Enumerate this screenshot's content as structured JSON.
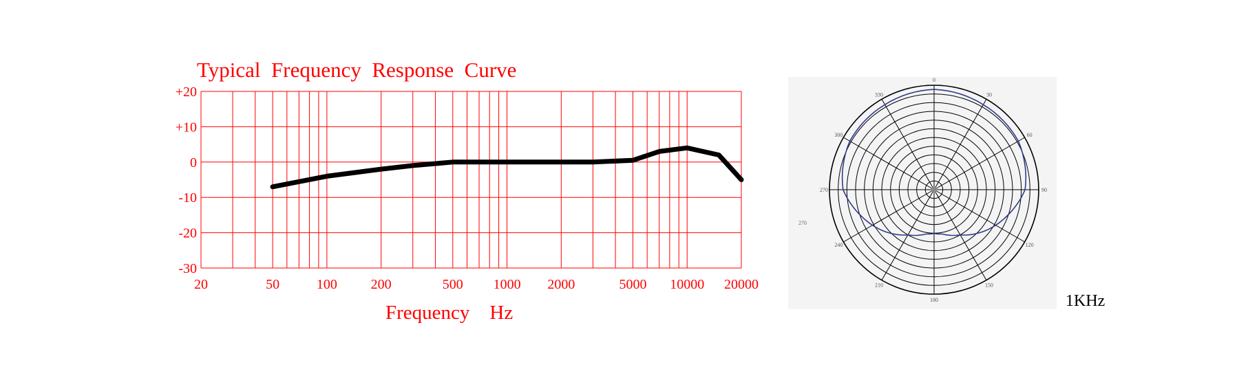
{
  "chart_data": [
    {
      "type": "line",
      "title": "Typical  Frequency  Response  Curve",
      "xlabel": "Frequency    Hz",
      "ylabel": "",
      "xscale": "log",
      "xlim": [
        20,
        20000
      ],
      "ylim": [
        -30,
        20
      ],
      "grid": true,
      "colors": {
        "axis": "#ff0000",
        "curve": "#000000"
      },
      "x_tick_labels": [
        {
          "value": 20,
          "label": "20"
        },
        {
          "value": 50,
          "label": "50"
        },
        {
          "value": 100,
          "label": "100"
        },
        {
          "value": 200,
          "label": "200"
        },
        {
          "value": 500,
          "label": "500"
        },
        {
          "value": 1000,
          "label": "1000"
        },
        {
          "value": 2000,
          "label": "2000"
        },
        {
          "value": 5000,
          "label": "5000"
        },
        {
          "value": 10000,
          "label": "10000"
        },
        {
          "value": 20000,
          "label": "20000"
        }
      ],
      "y_tick_labels": [
        {
          "value": 20,
          "label": "+20"
        },
        {
          "value": 10,
          "label": "+10"
        },
        {
          "value": 0,
          "label": "0"
        },
        {
          "value": -10,
          "label": "-10"
        },
        {
          "value": -20,
          "label": "-20"
        },
        {
          "value": -30,
          "label": "-30"
        }
      ],
      "x_gridlines": [
        20,
        30,
        40,
        50,
        60,
        70,
        80,
        90,
        100,
        200,
        300,
        400,
        500,
        600,
        700,
        800,
        900,
        1000,
        2000,
        3000,
        4000,
        5000,
        6000,
        7000,
        8000,
        9000,
        10000,
        20000
      ],
      "y_gridlines": [
        20,
        10,
        0,
        -10,
        -20,
        -30
      ],
      "series": [
        {
          "points": [
            {
              "x": 50,
              "y": -7
            },
            {
              "x": 100,
              "y": -4
            },
            {
              "x": 200,
              "y": -2
            },
            {
              "x": 300,
              "y": -1
            },
            {
              "x": 500,
              "y": 0
            },
            {
              "x": 700,
              "y": 0
            },
            {
              "x": 1000,
              "y": 0
            },
            {
              "x": 2000,
              "y": 0
            },
            {
              "x": 3000,
              "y": 0
            },
            {
              "x": 5000,
              "y": 0.5
            },
            {
              "x": 7000,
              "y": 3
            },
            {
              "x": 10000,
              "y": 4
            },
            {
              "x": 15000,
              "y": 2
            },
            {
              "x": 20000,
              "y": -5
            }
          ]
        }
      ]
    },
    {
      "type": "polar",
      "caption": "1KHz",
      "colors": {
        "grid": "#000000",
        "pattern": "#2f3a8f",
        "frame": "#f3f3f3"
      },
      "angle_labels": [
        {
          "deg": 0,
          "label": "0"
        },
        {
          "deg": 30,
          "label": "30"
        },
        {
          "deg": 60,
          "label": "60"
        },
        {
          "deg": 90,
          "label": "90"
        },
        {
          "deg": 120,
          "label": "120"
        },
        {
          "deg": 150,
          "label": "150"
        },
        {
          "deg": 180,
          "label": "180"
        },
        {
          "deg": 210,
          "label": "210"
        },
        {
          "deg": 240,
          "label": "240"
        },
        {
          "deg": 270,
          "label": "270"
        },
        {
          "deg": 300,
          "label": "300"
        },
        {
          "deg": 330,
          "label": "330"
        }
      ],
      "outside_label": "270",
      "rings": 12,
      "spokes_deg": [
        0,
        30,
        60,
        90,
        120,
        150,
        180,
        210,
        240,
        270,
        300,
        330
      ],
      "pattern": [
        {
          "deg": 0,
          "r": 0.96
        },
        {
          "deg": 30,
          "r": 0.94
        },
        {
          "deg": 60,
          "r": 0.93
        },
        {
          "deg": 90,
          "r": 0.87
        },
        {
          "deg": 110,
          "r": 0.74
        },
        {
          "deg": 130,
          "r": 0.62
        },
        {
          "deg": 150,
          "r": 0.5
        },
        {
          "deg": 170,
          "r": 0.43
        },
        {
          "deg": 180,
          "r": 0.42
        },
        {
          "deg": 190,
          "r": 0.43
        },
        {
          "deg": 210,
          "r": 0.5
        },
        {
          "deg": 230,
          "r": 0.62
        },
        {
          "deg": 250,
          "r": 0.74
        },
        {
          "deg": 270,
          "r": 0.87
        },
        {
          "deg": 300,
          "r": 0.93
        },
        {
          "deg": 330,
          "r": 0.94
        }
      ]
    }
  ]
}
